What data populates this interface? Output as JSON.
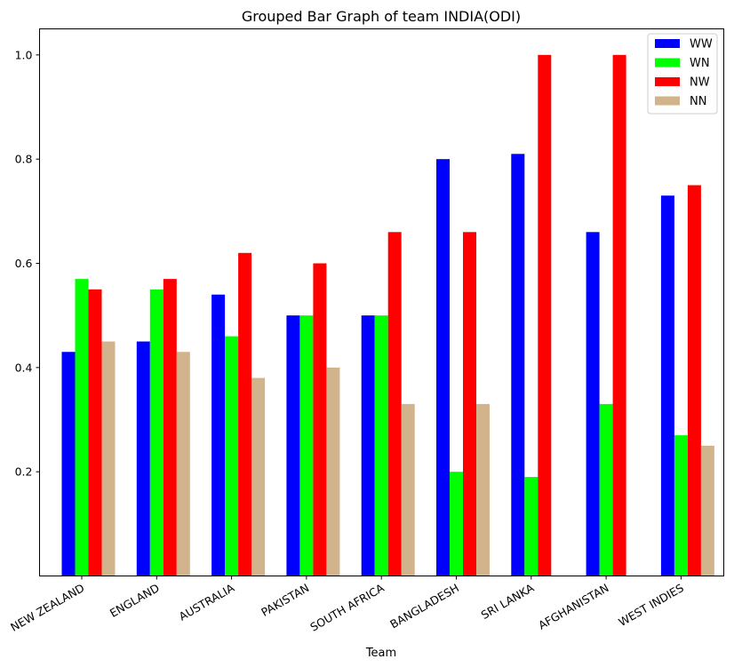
{
  "chart_data": {
    "type": "bar",
    "title": "Grouped Bar Graph of team INDIA(ODI)",
    "xlabel": "Team",
    "ylabel": "",
    "ylim": [
      0.0,
      1.05
    ],
    "yticks": [
      "0.2",
      "0.4",
      "0.6",
      "0.8",
      "1.0"
    ],
    "categories": [
      "NEW ZEALAND",
      "ENGLAND",
      "AUSTRALIA",
      "PAKISTAN",
      "SOUTH AFRICA",
      "BANGLADESH",
      "SRI LANKA",
      "AFGHANISTAN",
      "WEST INDIES"
    ],
    "series": [
      {
        "name": "WW",
        "color": "#0000ff",
        "values": [
          0.43,
          0.45,
          0.54,
          0.5,
          0.5,
          0.8,
          0.81,
          0.66,
          0.73
        ]
      },
      {
        "name": "WN",
        "color": "#00ff00",
        "values": [
          0.57,
          0.55,
          0.46,
          0.5,
          0.5,
          0.2,
          0.19,
          0.33,
          0.27
        ]
      },
      {
        "name": "NW",
        "color": "#ff0000",
        "values": [
          0.55,
          0.57,
          0.62,
          0.6,
          0.66,
          0.66,
          1.0,
          1.0,
          0.75
        ]
      },
      {
        "name": "NN",
        "color": "#d2b48c",
        "values": [
          0.45,
          0.43,
          0.38,
          0.4,
          0.33,
          0.33,
          0.0,
          0.0,
          0.25
        ]
      }
    ],
    "legend_position": "top-right",
    "grid": false
  }
}
